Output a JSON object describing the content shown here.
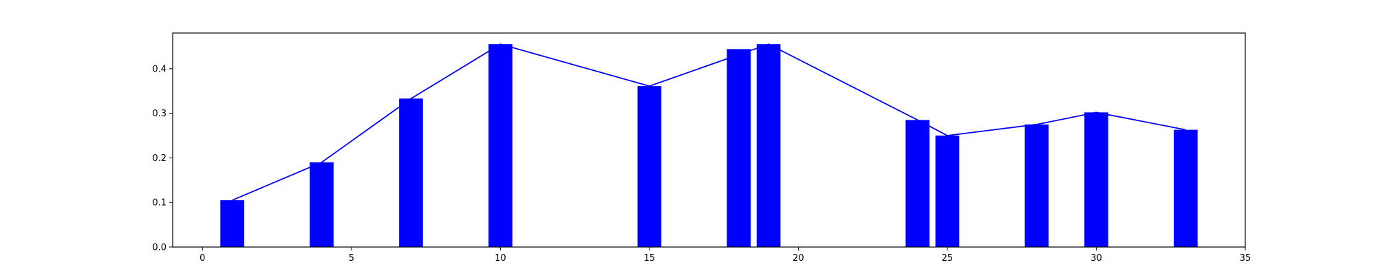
{
  "chart_data": {
    "type": "bar",
    "title": "",
    "xlabel": "",
    "ylabel": "",
    "xlim": [
      -1,
      35
    ],
    "ylim": [
      0,
      0.48
    ],
    "grid": false,
    "bar_color": "#0000ff",
    "line_color": "#0000ff",
    "x_ticks": [
      0,
      5,
      10,
      15,
      20,
      25,
      30,
      35
    ],
    "y_ticks": [
      0.0,
      0.1,
      0.2,
      0.3,
      0.4
    ],
    "x_tick_labels": [
      "0",
      "5",
      "10",
      "15",
      "20",
      "25",
      "30",
      "35"
    ],
    "y_tick_labels": [
      "0.0",
      "0.1",
      "0.2",
      "0.3",
      "0.4"
    ],
    "bars": [
      {
        "x": 1,
        "y": 0.105
      },
      {
        "x": 4,
        "y": 0.19
      },
      {
        "x": 7,
        "y": 0.333
      },
      {
        "x": 10,
        "y": 0.455
      },
      {
        "x": 15,
        "y": 0.361
      },
      {
        "x": 18,
        "y": 0.444
      },
      {
        "x": 19,
        "y": 0.455
      },
      {
        "x": 24,
        "y": 0.285
      },
      {
        "x": 25,
        "y": 0.25
      },
      {
        "x": 28,
        "y": 0.275
      },
      {
        "x": 30,
        "y": 0.302
      },
      {
        "x": 33,
        "y": 0.263
      }
    ],
    "line": [
      {
        "x": 1,
        "y": 0.105
      },
      {
        "x": 4,
        "y": 0.19
      },
      {
        "x": 7,
        "y": 0.333
      },
      {
        "x": 10,
        "y": 0.455
      },
      {
        "x": 15,
        "y": 0.361
      },
      {
        "x": 19,
        "y": 0.455
      },
      {
        "x": 24,
        "y": 0.285
      },
      {
        "x": 25,
        "y": 0.25
      },
      {
        "x": 28,
        "y": 0.275
      },
      {
        "x": 30,
        "y": 0.302
      },
      {
        "x": 33,
        "y": 0.263
      }
    ]
  }
}
